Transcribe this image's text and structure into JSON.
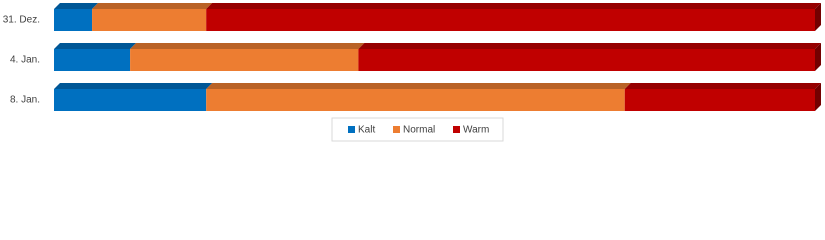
{
  "chart_data": {
    "type": "stacked-bar-3d",
    "categories": [
      "31. Dez.",
      "4. Jan.",
      "8. Jan."
    ],
    "series": [
      {
        "name": "Kalt",
        "color": "#0070c0",
        "values": [
          5,
          10,
          20
        ]
      },
      {
        "name": "Normal",
        "color": "#ed7d31",
        "values": [
          15,
          30,
          55
        ]
      },
      {
        "name": "Warm",
        "color": "#c00000",
        "values": [
          80,
          60,
          25
        ]
      }
    ],
    "xlim": [
      0,
      100
    ]
  }
}
